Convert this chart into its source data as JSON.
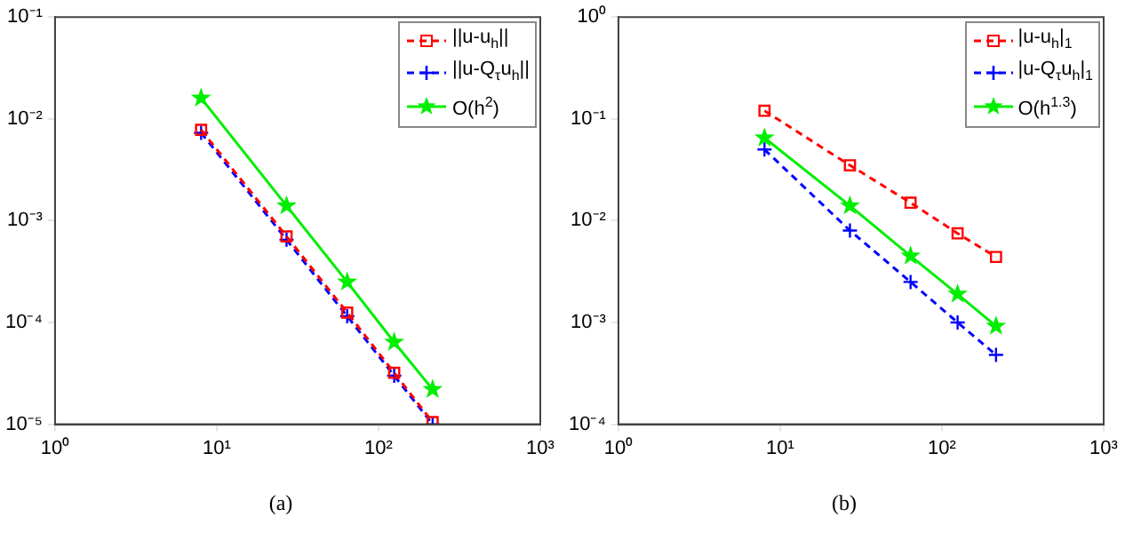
{
  "chart_data": [
    {
      "type": "line",
      "annotations": [
        "(a)"
      ],
      "log": "xy",
      "legend": "top right",
      "grid": false,
      "x": [
        8,
        27,
        64,
        125,
        216
      ],
      "xlim": [
        1,
        1000
      ],
      "xticks": [
        {
          "value": 1,
          "label": "10⁰"
        },
        {
          "value": 10,
          "label": "10¹"
        },
        {
          "value": 100,
          "label": "10²"
        },
        {
          "value": 1000,
          "label": "10³"
        }
      ],
      "ylim": [
        1e-05,
        0.1
      ],
      "yticks": [
        {
          "value": 1e-05,
          "label": "10⁻⁵"
        },
        {
          "value": 0.0001,
          "label": "10⁻⁴"
        },
        {
          "value": 0.001,
          "label": "10⁻³"
        },
        {
          "value": 0.01,
          "label": "10⁻²"
        },
        {
          "value": 0.1,
          "label": "10⁻¹"
        }
      ],
      "series": [
        {
          "name": "||u-u$_{h}$||",
          "color": "#ff0000",
          "marker": "square",
          "line_style": "dashed",
          "values": [
            0.0078,
            0.0007,
            0.000125,
            3.2e-05,
            1.05e-05
          ]
        },
        {
          "name": "||u-Q$_{τ}$u$_{h}$||",
          "color": "#0000ff",
          "marker": "cross",
          "line_style": "dashed",
          "values": [
            0.0073,
            0.00065,
            0.000115,
            3e-05,
            1e-05
          ]
        },
        {
          "name": "O(h$^{2}$)",
          "color": "#00ee00",
          "marker": "star",
          "line_style": "solid",
          "values": [
            0.016,
            0.0014,
            0.00025,
            6.4e-05,
            2.2e-05
          ]
        }
      ]
    },
    {
      "type": "line",
      "annotations": [
        "(b)"
      ],
      "log": "xy",
      "legend": "top right",
      "grid": false,
      "x": [
        8,
        27,
        64,
        125,
        216
      ],
      "xlim": [
        1,
        1000
      ],
      "xticks": [
        {
          "value": 1,
          "label": "10⁰"
        },
        {
          "value": 10,
          "label": "10¹"
        },
        {
          "value": 100,
          "label": "10²"
        },
        {
          "value": 1000,
          "label": "10³"
        }
      ],
      "ylim": [
        0.0001,
        1
      ],
      "yticks": [
        {
          "value": 0.0001,
          "label": "10⁻⁴"
        },
        {
          "value": 0.001,
          "label": "10⁻³"
        },
        {
          "value": 0.01,
          "label": "10⁻²"
        },
        {
          "value": 0.1,
          "label": "10⁻¹"
        },
        {
          "value": 1,
          "label": "10⁰"
        }
      ],
      "series": [
        {
          "name": "|u-u$_{h}$|$_{1}$",
          "color": "#ff0000",
          "marker": "square",
          "line_style": "dashed",
          "values": [
            0.12,
            0.035,
            0.015,
            0.0075,
            0.0044
          ]
        },
        {
          "name": "|u-Q$_{τ}$u$_{h}$|$_{1}$",
          "color": "#0000ff",
          "marker": "cross",
          "line_style": "dashed",
          "values": [
            0.05,
            0.008,
            0.0025,
            0.001,
            0.00048
          ]
        },
        {
          "name": "O(h$^{1.3}$)",
          "color": "#00ee00",
          "marker": "star",
          "line_style": "solid",
          "values": [
            0.065,
            0.014,
            0.0045,
            0.0019,
            0.00092
          ]
        }
      ]
    }
  ]
}
